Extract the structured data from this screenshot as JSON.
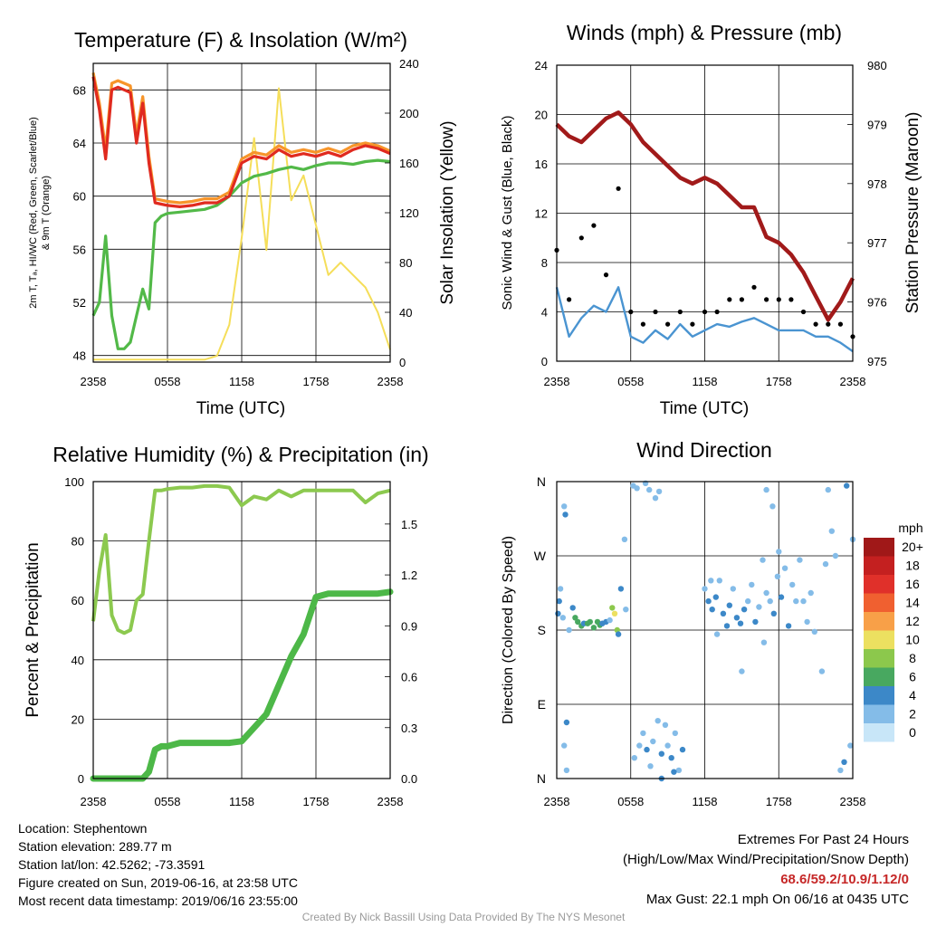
{
  "colors": {
    "temp": "#e02a1f",
    "hiwc": "#2e9c3a",
    "dew": "#52b948",
    "t9": "#f7952a",
    "insolation": "#f5de5a",
    "wind": "#4a94d1",
    "gust": "#000000",
    "pressure": "#a11a1a",
    "rh": "#8cc94f",
    "precip": "#4db848",
    "grid": "#000000"
  },
  "x_ticks": [
    "2358",
    "0558",
    "1158",
    "1758",
    "2358"
  ],
  "panels": {
    "temperature": {
      "title": "Temperature (F) & Insolation (W/m²)",
      "left_label_line1": "2m T, Tₐ, HI/WC (Red, Green, Scarlet/Blue)",
      "left_label_line2": "& 9m T (Orange)",
      "right_label": "Solar Insolation (Yellow)",
      "xlabel": "Time (UTC)",
      "left_ticks": [
        "48",
        "52",
        "56",
        "60",
        "64",
        "68"
      ],
      "right_ticks": [
        "0",
        "40",
        "80",
        "120",
        "160",
        "200",
        "240"
      ]
    },
    "winds": {
      "title": "Winds (mph) & Pressure (mb)",
      "left_label": "Sonic Wind & Gust (Blue, Black)",
      "right_label": "Station Pressure (Maroon)",
      "xlabel": "Time (UTC)",
      "left_ticks": [
        "0",
        "4",
        "8",
        "12",
        "16",
        "20",
        "24"
      ],
      "right_ticks": [
        "975",
        "976",
        "977",
        "978",
        "979",
        "980"
      ]
    },
    "humidity": {
      "title": "Relative Humidity (%) & Precipitation (in)",
      "left_label": "Percent & Precipitation",
      "left_ticks": [
        "0",
        "20",
        "40",
        "60",
        "80",
        "100"
      ],
      "right_ticks": [
        "0.0",
        "0.3",
        "0.6",
        "0.9",
        "1.2",
        "1.5"
      ]
    },
    "direction": {
      "title": "Wind Direction",
      "left_label": "Direction (Colored By Speed)",
      "left_ticks": [
        "N",
        "E",
        "S",
        "W",
        "N"
      ],
      "legend_title": "mph",
      "legend_labels": [
        "20+",
        "18",
        "16",
        "14",
        "12",
        "10",
        "8",
        "6",
        "4",
        "2",
        "0"
      ],
      "legend_colors": [
        "#a01818",
        "#c42020",
        "#e0302a",
        "#f06030",
        "#f8a048",
        "#ece060",
        "#8cc84c",
        "#48a860",
        "#3c88c8",
        "#84bce8",
        "#c8e6f8"
      ]
    }
  },
  "chart_data": [
    {
      "type": "line",
      "title": "Temperature (F) & Insolation (W/m²)",
      "xlabel": "Time (UTC)",
      "ylabel": "2m T, Tₐ, HI/WC (Red, Green, Scarlet/Blue) & 9m T (Orange)",
      "y2label": "Solar Insolation (Yellow)",
      "x_hours": [
        0,
        0.5,
        1,
        1.5,
        2,
        2.5,
        3,
        3.5,
        4,
        4.5,
        5,
        5.5,
        6,
        7,
        8,
        9,
        10,
        11,
        12,
        13,
        14,
        15,
        16,
        17,
        18,
        19,
        20,
        21,
        22,
        23,
        24
      ],
      "ylim": [
        47.5,
        70
      ],
      "y2lim": [
        0,
        240
      ],
      "series": [
        {
          "name": "2m T",
          "color": "red",
          "axis": "left",
          "values": [
            69.0,
            66.5,
            62.8,
            68.0,
            68.2,
            68.0,
            67.8,
            64.0,
            67.0,
            62.5,
            59.5,
            59.4,
            59.3,
            59.2,
            59.3,
            59.5,
            59.5,
            60.0,
            62.5,
            63.0,
            62.8,
            63.5,
            63.0,
            63.2,
            63.0,
            63.3,
            63.0,
            63.5,
            63.8,
            63.6,
            63.2
          ]
        },
        {
          "name": "9m T",
          "color": "orange",
          "axis": "left",
          "values": [
            69.3,
            67.0,
            63.5,
            68.5,
            68.7,
            68.5,
            68.3,
            64.6,
            67.5,
            63.0,
            59.8,
            59.7,
            59.6,
            59.5,
            59.6,
            59.8,
            59.8,
            60.3,
            62.8,
            63.3,
            63.1,
            63.8,
            63.3,
            63.5,
            63.3,
            63.6,
            63.3,
            63.8,
            64.0,
            63.8,
            63.4
          ]
        },
        {
          "name": "Dewpoint",
          "color": "green",
          "axis": "left",
          "values": [
            51.0,
            52.0,
            57.0,
            51.0,
            48.5,
            48.5,
            49.0,
            51.0,
            53.0,
            51.5,
            58.0,
            58.5,
            58.7,
            58.8,
            58.9,
            59.0,
            59.3,
            60.0,
            61.0,
            61.5,
            61.7,
            62.0,
            62.2,
            62.0,
            62.3,
            62.5,
            62.5,
            62.4,
            62.6,
            62.7,
            62.6
          ]
        },
        {
          "name": "Solar Insolation",
          "color": "yellow",
          "axis": "right",
          "values": [
            2,
            2,
            2,
            2,
            2,
            2,
            2,
            2,
            2,
            2,
            2,
            2,
            2,
            2,
            2,
            2,
            5,
            30,
            100,
            180,
            90,
            220,
            130,
            150,
            110,
            70,
            80,
            70,
            60,
            40,
            10
          ]
        }
      ]
    },
    {
      "type": "line",
      "title": "Winds (mph) & Pressure (mb)",
      "xlabel": "Time (UTC)",
      "ylabel": "Sonic Wind & Gust (Blue, Black)",
      "y2label": "Station Pressure (Maroon)",
      "ylim": [
        0,
        24
      ],
      "y2lim": [
        975,
        980
      ],
      "x_hours": [
        0,
        1,
        2,
        3,
        4,
        5,
        6,
        7,
        8,
        9,
        10,
        11,
        12,
        13,
        14,
        15,
        16,
        17,
        18,
        19,
        20,
        21,
        22,
        23,
        24
      ],
      "series": [
        {
          "name": "Sonic Wind",
          "color": "blue",
          "axis": "left",
          "values": [
            6.0,
            2.0,
            3.5,
            4.5,
            4.0,
            6.0,
            2.0,
            1.5,
            2.5,
            1.8,
            3.0,
            2.0,
            2.5,
            3.0,
            2.8,
            3.2,
            3.5,
            3.0,
            2.5,
            2.5,
            2.5,
            2.0,
            2.0,
            1.5,
            0.8
          ]
        },
        {
          "name": "Gust",
          "color": "black",
          "axis": "left",
          "values": [
            9,
            5,
            10,
            11,
            7,
            14,
            4,
            3,
            4,
            3,
            4,
            3,
            4,
            4,
            5,
            5,
            6,
            5,
            5,
            5,
            4,
            3,
            3,
            3,
            2
          ]
        },
        {
          "name": "Station Pressure",
          "color": "maroon",
          "axis": "right",
          "values": [
            979.0,
            978.8,
            978.7,
            978.9,
            979.1,
            979.2,
            979.0,
            978.7,
            978.5,
            978.3,
            978.1,
            978.0,
            978.1,
            978.0,
            977.8,
            977.6,
            977.6,
            977.1,
            977.0,
            976.8,
            976.5,
            976.1,
            975.7,
            976.0,
            976.4
          ]
        }
      ]
    },
    {
      "type": "line",
      "title": "Relative Humidity (%) & Precipitation (in)",
      "ylabel": "Percent & Precipitation",
      "ylim": [
        0,
        100
      ],
      "y2lim": [
        0,
        1.75
      ],
      "x_hours": [
        0,
        0.5,
        1,
        1.5,
        2,
        2.5,
        3,
        3.5,
        4,
        4.5,
        5,
        5.5,
        6,
        7,
        8,
        9,
        10,
        11,
        12,
        13,
        14,
        15,
        16,
        17,
        18,
        19,
        20,
        21,
        22,
        23,
        24
      ],
      "series": [
        {
          "name": "Relative Humidity",
          "color": "lightgreen",
          "axis": "left",
          "values": [
            53,
            70,
            82,
            55,
            50,
            49,
            50,
            60,
            62,
            80,
            97,
            97,
            97.5,
            98,
            98,
            98.5,
            98.5,
            98,
            92,
            95,
            94,
            97,
            95,
            97,
            97,
            97,
            97,
            97,
            93,
            96,
            97
          ]
        },
        {
          "name": "Precipitation",
          "color": "green",
          "axis": "right",
          "values": [
            0.0,
            0.0,
            0.0,
            0.0,
            0.0,
            0.0,
            0.0,
            0.0,
            0.0,
            0.04,
            0.17,
            0.19,
            0.19,
            0.21,
            0.21,
            0.21,
            0.21,
            0.21,
            0.22,
            0.3,
            0.38,
            0.55,
            0.72,
            0.85,
            1.07,
            1.09,
            1.09,
            1.09,
            1.09,
            1.09,
            1.1
          ]
        }
      ]
    },
    {
      "type": "scatter",
      "title": "Wind Direction",
      "ylabel": "Direction (Colored By Speed)",
      "xlim_hours": [
        0,
        24
      ],
      "ylim_deg": [
        0,
        360
      ],
      "points": [
        [
          0.1,
          200,
          4
        ],
        [
          0.2,
          215,
          4
        ],
        [
          0.3,
          230,
          2
        ],
        [
          0.5,
          195,
          2
        ],
        [
          0.6,
          330,
          2
        ],
        [
          0.7,
          320,
          4
        ],
        [
          0.6,
          40,
          2
        ],
        [
          0.8,
          10,
          2
        ],
        [
          0.8,
          68,
          4
        ],
        [
          1.0,
          180,
          2
        ],
        [
          1.3,
          207,
          4
        ],
        [
          1.5,
          195,
          6
        ],
        [
          1.7,
          190,
          6
        ],
        [
          2.0,
          185,
          6
        ],
        [
          2.2,
          188,
          4
        ],
        [
          2.5,
          188,
          6
        ],
        [
          2.7,
          190,
          6
        ],
        [
          3.0,
          183,
          6
        ],
        [
          3.3,
          190,
          6
        ],
        [
          3.5,
          186,
          6
        ],
        [
          3.7,
          188,
          4
        ],
        [
          4.0,
          190,
          4
        ],
        [
          4.3,
          192,
          2
        ],
        [
          4.5,
          207,
          8
        ],
        [
          4.7,
          200,
          10
        ],
        [
          4.9,
          180,
          8
        ],
        [
          5.0,
          175,
          4
        ],
        [
          5.2,
          230,
          4
        ],
        [
          5.5,
          290,
          2
        ],
        [
          5.6,
          205,
          2
        ],
        [
          6.2,
          355,
          2
        ],
        [
          6.5,
          352,
          2
        ],
        [
          7.2,
          358,
          2
        ],
        [
          7.5,
          350,
          2
        ],
        [
          8.0,
          340,
          2
        ],
        [
          8.3,
          348,
          2
        ],
        [
          6.3,
          25,
          2
        ],
        [
          6.7,
          40,
          2
        ],
        [
          7.0,
          55,
          2
        ],
        [
          7.3,
          35,
          4
        ],
        [
          7.6,
          15,
          2
        ],
        [
          7.8,
          45,
          2
        ],
        [
          8.2,
          70,
          2
        ],
        [
          8.5,
          30,
          4
        ],
        [
          8.8,
          65,
          2
        ],
        [
          9.0,
          40,
          2
        ],
        [
          9.3,
          25,
          4
        ],
        [
          9.6,
          55,
          2
        ],
        [
          9.9,
          10,
          2
        ],
        [
          10.2,
          35,
          4
        ],
        [
          12.0,
          230,
          2
        ],
        [
          12.3,
          215,
          4
        ],
        [
          12.6,
          205,
          4
        ],
        [
          12.9,
          220,
          4
        ],
        [
          13.2,
          240,
          2
        ],
        [
          13.5,
          200,
          4
        ],
        [
          13.8,
          185,
          4
        ],
        [
          14.0,
          210,
          4
        ],
        [
          14.3,
          230,
          2
        ],
        [
          14.6,
          195,
          4
        ],
        [
          14.9,
          188,
          4
        ],
        [
          15.2,
          205,
          4
        ],
        [
          15.5,
          215,
          2
        ],
        [
          15.8,
          235,
          2
        ],
        [
          16.1,
          190,
          4
        ],
        [
          16.4,
          208,
          2
        ],
        [
          16.7,
          265,
          2
        ],
        [
          17.0,
          225,
          2
        ],
        [
          17.3,
          215,
          2
        ],
        [
          17.6,
          200,
          4
        ],
        [
          17.9,
          245,
          2
        ],
        [
          18.2,
          220,
          4
        ],
        [
          18.5,
          255,
          2
        ],
        [
          18.8,
          185,
          4
        ],
        [
          19.1,
          235,
          2
        ],
        [
          19.4,
          215,
          2
        ],
        [
          19.7,
          265,
          2
        ],
        [
          20.0,
          215,
          2
        ],
        [
          20.3,
          190,
          2
        ],
        [
          20.6,
          225,
          2
        ],
        [
          17.0,
          350,
          2
        ],
        [
          17.5,
          330,
          2
        ],
        [
          12.5,
          240,
          2
        ],
        [
          15.0,
          130,
          2
        ],
        [
          21.5,
          130,
          2
        ],
        [
          22.0,
          350,
          2
        ],
        [
          22.3,
          300,
          2
        ],
        [
          23.0,
          10,
          2
        ],
        [
          23.3,
          20,
          4
        ],
        [
          23.8,
          40,
          2
        ],
        [
          21.8,
          260,
          2
        ],
        [
          22.6,
          270,
          2
        ],
        [
          23.5,
          355,
          4
        ],
        [
          24.0,
          290,
          2
        ],
        [
          20.9,
          178,
          2
        ],
        [
          16.8,
          165,
          2
        ],
        [
          13.0,
          175,
          2
        ],
        [
          18.0,
          275,
          2
        ],
        [
          8.5,
          0,
          4
        ],
        [
          9.5,
          8,
          4
        ]
      ]
    }
  ],
  "footer": {
    "location": "Location: Stephentown",
    "elevation": "Station elevation: 289.77 m",
    "latlon": "Station lat/lon: 42.5262; -73.3591",
    "created": "Figure created on Sun, 2019-06-16, at 23:58 UTC",
    "recent": "Most recent data timestamp: 2019/06/16 23:55:00",
    "extremes_title": "Extremes For Past 24 Hours",
    "extremes_legend": "(High/Low/Max Wind/Precipitation/Snow Depth)",
    "extremes_values": "68.6/59.2/10.9/1.12/0",
    "max_gust": "Max Gust: 22.1 mph On 06/16 at 0435 UTC",
    "credit": "Created By Nick Bassill Using Data Provided By The NYS Mesonet"
  }
}
